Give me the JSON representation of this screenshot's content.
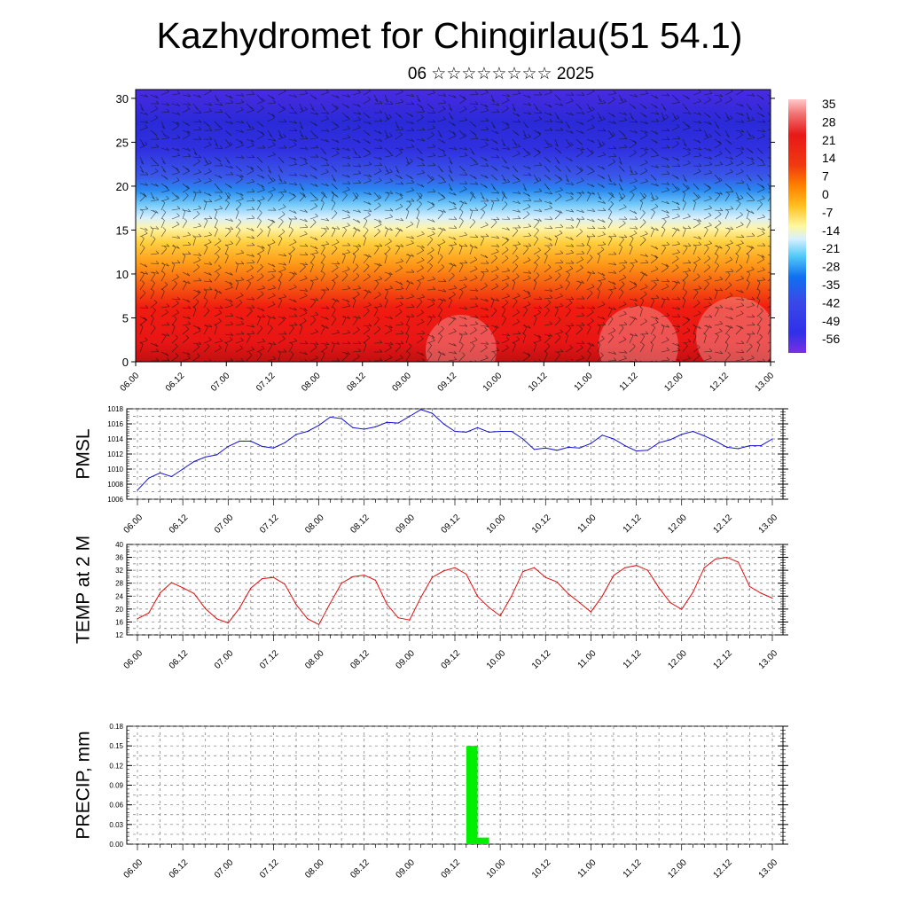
{
  "title": "Kazhydromet for Chingirlau(51 54.1)",
  "subtitle": "06 ☆☆☆☆☆☆☆☆ 2025",
  "colors": {
    "pmsl_line": "#1010d0",
    "temp_line": "#dd1010",
    "precip_bar": "#00ee00",
    "colorbar": [
      "#ffc8c8",
      "#f08080",
      "#e81818",
      "#f04010",
      "#ff8000",
      "#ffc020",
      "#fff8a0",
      "#d0eeff",
      "#50c8f8",
      "#1070f0",
      "#3030e8",
      "#7030e0"
    ]
  },
  "chart_data": [
    {
      "type": "heatmap",
      "title": "",
      "xlabel": "",
      "ylabel": "",
      "x_ticks": [
        "06.00",
        "06.12",
        "07.00",
        "07.12",
        "08.00",
        "08.12",
        "09.00",
        "09.12",
        "10.00",
        "10.12",
        "11.00",
        "11.12",
        "12.00",
        "12.12",
        "13.00"
      ],
      "y_ticks": [
        0,
        5,
        10,
        15,
        20,
        25,
        30
      ],
      "ylim": [
        0,
        31
      ],
      "colorbar_labels": [
        "35",
        "28",
        "21",
        "14",
        "7",
        "0",
        "-7",
        "-14",
        "-21",
        "-28",
        "-35",
        "-42",
        "-49",
        "-56"
      ],
      "overlay": "wind barbs"
    },
    {
      "type": "line",
      "ylabel": "PMSL",
      "x_ticks": [
        "06.00",
        "06.12",
        "07.00",
        "07.12",
        "08.00",
        "08.12",
        "09.00",
        "09.12",
        "10.00",
        "10.12",
        "11.00",
        "11.12",
        "12.00",
        "12.12",
        "13.00"
      ],
      "y_ticks": [
        "1006",
        "1008",
        "1010",
        "1012",
        "1014",
        "1016",
        "1018"
      ],
      "ylim": [
        1006,
        1018
      ],
      "x_step_hours": 3,
      "values": [
        1007.2,
        1008.8,
        1009.5,
        1009.0,
        1010.0,
        1011.0,
        1011.6,
        1011.9,
        1013.0,
        1013.7,
        1013.7,
        1013.0,
        1012.8,
        1013.5,
        1014.6,
        1015.0,
        1015.8,
        1016.9,
        1016.7,
        1015.5,
        1015.3,
        1015.6,
        1016.2,
        1016.1,
        1017.0,
        1017.9,
        1017.4,
        1016.0,
        1015.0,
        1014.9,
        1015.5,
        1014.9,
        1015.0,
        1015.0,
        1014.0,
        1012.6,
        1012.8,
        1012.5,
        1012.9,
        1012.8,
        1013.4,
        1014.5,
        1014.0,
        1013.1,
        1012.4,
        1012.5,
        1013.5,
        1013.9,
        1014.6,
        1015.0,
        1014.4,
        1013.7,
        1012.9,
        1012.7,
        1013.1,
        1013.1,
        1014.0
      ]
    },
    {
      "type": "line",
      "ylabel": "TEMP at 2 M",
      "x_ticks": [
        "06.00",
        "06.12",
        "07.00",
        "07.12",
        "08.00",
        "08.12",
        "09.00",
        "09.12",
        "10.00",
        "10.12",
        "11.00",
        "11.12",
        "12.00",
        "12.12",
        "13.00"
      ],
      "y_ticks": [
        "12",
        "16",
        "20",
        "24",
        "28",
        "32",
        "36",
        "40"
      ],
      "ylim": [
        12,
        40
      ],
      "x_step_hours": 3,
      "values": [
        17.0,
        18.8,
        25.0,
        28.2,
        26.6,
        24.8,
        20.1,
        17.0,
        15.7,
        20.3,
        26.5,
        29.4,
        29.8,
        27.7,
        21.4,
        17.0,
        15.2,
        21.8,
        28.0,
        30.0,
        30.5,
        28.9,
        21.5,
        17.3,
        16.6,
        23.6,
        29.8,
        31.8,
        32.8,
        30.8,
        23.9,
        20.5,
        17.9,
        24.0,
        31.6,
        32.8,
        29.8,
        28.4,
        24.7,
        22.0,
        19.1,
        24.0,
        30.4,
        32.8,
        33.5,
        32.0,
        26.6,
        22.0,
        19.9,
        25.2,
        32.8,
        35.5,
        36.0,
        34.5,
        27.0,
        24.9,
        23.4
      ]
    },
    {
      "type": "bar",
      "ylabel": "PRECIP, mm",
      "x_ticks": [
        "06.00",
        "06.12",
        "07.00",
        "07.12",
        "08.00",
        "08.12",
        "09.00",
        "09.12",
        "10.00",
        "10.12",
        "11.00",
        "11.12",
        "12.00",
        "12.12",
        "13.00"
      ],
      "y_ticks": [
        "0.00",
        "0.03",
        "0.06",
        "0.09",
        "0.12",
        "0.15",
        "0.18"
      ],
      "ylim": [
        0,
        0.18
      ],
      "bars": [
        {
          "start_hour": 87,
          "end_hour": 90,
          "value": 0.15
        },
        {
          "start_hour": 90,
          "end_hour": 93,
          "value": 0.01
        }
      ]
    }
  ]
}
